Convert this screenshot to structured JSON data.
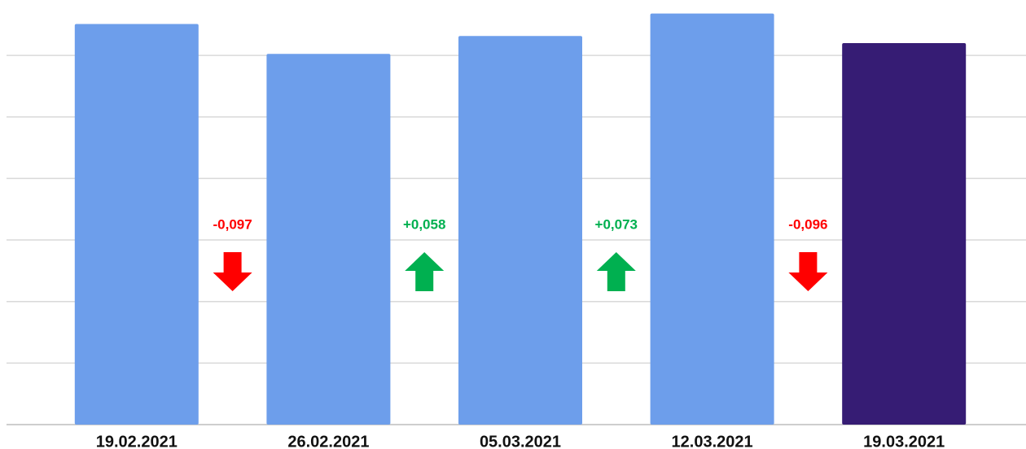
{
  "chart_data": {
    "type": "bar",
    "categories": [
      "19.02.2021",
      "26.02.2021",
      "05.03.2021",
      "12.03.2021",
      "19.03.2021"
    ],
    "values": [
      1.302,
      1.205,
      1.263,
      1.336,
      1.24
    ],
    "colors": [
      "#6d9eeb",
      "#6d9eeb",
      "#6d9eeb",
      "#6d9eeb",
      "#361c74"
    ],
    "ylim": [
      0,
      1.38
    ],
    "yticks": [
      0,
      0.2,
      0.4,
      0.6,
      0.8,
      1,
      1.2
    ],
    "grid": true,
    "annotations": [
      {
        "text": "-0,097",
        "direction": "down",
        "color": "#ff0000"
      },
      {
        "text": "+0,058",
        "direction": "up",
        "color": "#00b050"
      },
      {
        "text": "+0,073",
        "direction": "up",
        "color": "#00b050"
      },
      {
        "text": "-0,096",
        "direction": "down",
        "color": "#ff0000"
      }
    ]
  }
}
